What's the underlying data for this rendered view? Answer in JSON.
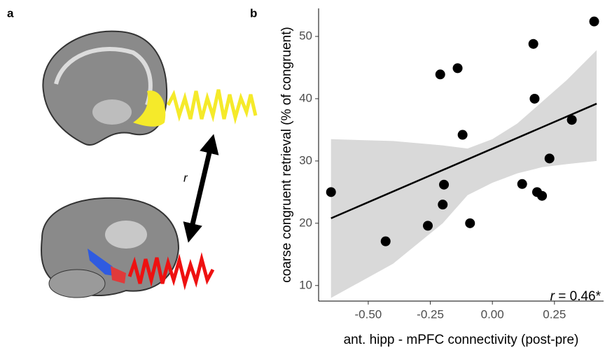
{
  "panel_labels": [
    "a",
    "b"
  ],
  "arrow_label": "r",
  "chart_data": {
    "type": "scatter",
    "x_label": "ant. hipp - mPFC connectivity (post-pre)",
    "y_label": "coarse congruent retrieval (% of congruent)",
    "annotation": {
      "symbol": "r",
      "text": " = 0.46*"
    },
    "x": [
      -0.65,
      -0.43,
      -0.26,
      -0.21,
      -0.195,
      -0.2,
      -0.14,
      -0.12,
      -0.09,
      0.12,
      0.165,
      0.17,
      0.18,
      0.2,
      0.23,
      0.32,
      0.41
    ],
    "values": [
      25.0,
      17.1,
      19.6,
      43.9,
      26.2,
      23.0,
      44.9,
      34.2,
      20.0,
      26.3,
      48.8,
      40.0,
      25.0,
      24.4,
      30.4,
      36.6,
      52.4
    ],
    "color": "#000000",
    "fit": {
      "x": [
        -0.65,
        0.42
      ],
      "y": [
        20.8,
        39.2
      ],
      "color": "#000000"
    },
    "band": {
      "x": [
        -0.65,
        -0.4,
        -0.2,
        -0.1,
        0.0,
        0.1,
        0.2,
        0.3,
        0.42
      ],
      "lower": [
        8.0,
        13.5,
        20.0,
        24.5,
        26.5,
        28.0,
        29.0,
        29.5,
        30.0
      ],
      "upper": [
        33.5,
        33.2,
        32.5,
        32.0,
        33.5,
        36.0,
        39.5,
        43.0,
        47.8
      ],
      "color": "#d9d9d9"
    },
    "xlim": [
      -0.7,
      0.448
    ],
    "ylim": [
      7.5,
      54.5
    ],
    "xticks": [
      {
        "value": -0.5,
        "label": "-0.50"
      },
      -0.25,
      {
        "value": 0,
        "label": "0.00"
      },
      0.25
    ],
    "yticks": [
      10,
      20,
      30,
      40,
      50
    ]
  }
}
